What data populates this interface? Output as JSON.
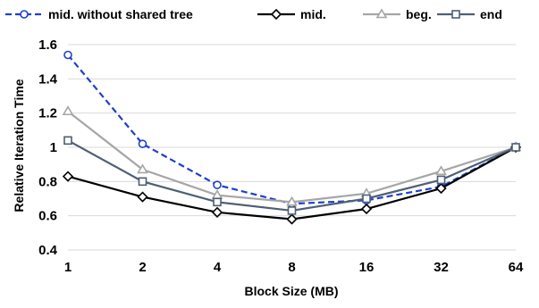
{
  "chart_data": {
    "type": "line",
    "x": [
      "1",
      "2",
      "4",
      "8",
      "16",
      "32",
      "64"
    ],
    "xlabel": "Block Size (MB)",
    "ylabel": "Relative Iteration Time",
    "ylim": [
      0.4,
      1.6
    ],
    "yticks": [
      "0.4",
      "0.6",
      "0.8",
      "1",
      "1.2",
      "1.4",
      "1.6"
    ],
    "grid": "horizontal",
    "legend": "top",
    "series": [
      {
        "name": "mid. without shared tree",
        "values": [
          1.54,
          1.02,
          0.78,
          0.67,
          0.69,
          0.77,
          1.0
        ],
        "color": "#1f3fcc",
        "marker": "circle",
        "dash": "dashed"
      },
      {
        "name": "mid.",
        "values": [
          0.83,
          0.71,
          0.62,
          0.58,
          0.64,
          0.76,
          1.0
        ],
        "color": "#000000",
        "marker": "diamond",
        "dash": "solid"
      },
      {
        "name": "beg.",
        "values": [
          1.21,
          0.87,
          0.72,
          0.68,
          0.73,
          0.86,
          1.0
        ],
        "color": "#a6a6a6",
        "marker": "triangle",
        "dash": "solid"
      },
      {
        "name": "end",
        "values": [
          1.04,
          0.8,
          0.68,
          0.63,
          0.7,
          0.81,
          1.0
        ],
        "color": "#4e5f75",
        "marker": "square",
        "dash": "solid"
      }
    ]
  }
}
